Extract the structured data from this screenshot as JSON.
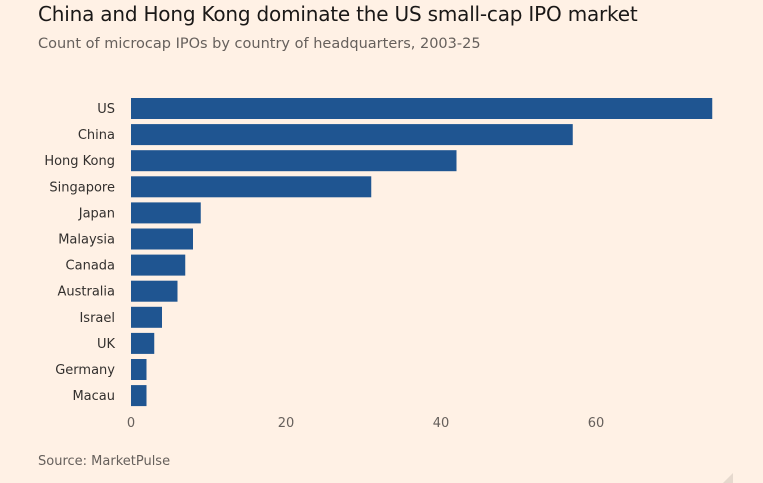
{
  "header": {
    "title": "China and Hong Kong dominate the US small-cap IPO market",
    "subtitle": "Count of microcap IPOs by country of headquarters, 2003-25"
  },
  "footer": {
    "source": "Source: MarketPulse"
  },
  "chart_data": {
    "type": "bar",
    "orientation": "horizontal",
    "title": "China and Hong Kong dominate the US small-cap IPO market",
    "subtitle": "Count of microcap IPOs by country of headquarters, 2003-25",
    "xlabel": "",
    "ylabel": "",
    "categories": [
      "US",
      "China",
      "Hong Kong",
      "Singapore",
      "Japan",
      "Malaysia",
      "Canada",
      "Australia",
      "Israel",
      "UK",
      "Germany",
      "Macau"
    ],
    "values": [
      75,
      57,
      42,
      31,
      9,
      8,
      7,
      6,
      4,
      3,
      2,
      2
    ],
    "xlim": [
      0,
      76
    ],
    "xticks": [
      0,
      20,
      40,
      60
    ],
    "xtick_labels": [
      "0",
      "20",
      "40",
      "60"
    ],
    "grid": false,
    "bar_color": "#1f5591"
  }
}
